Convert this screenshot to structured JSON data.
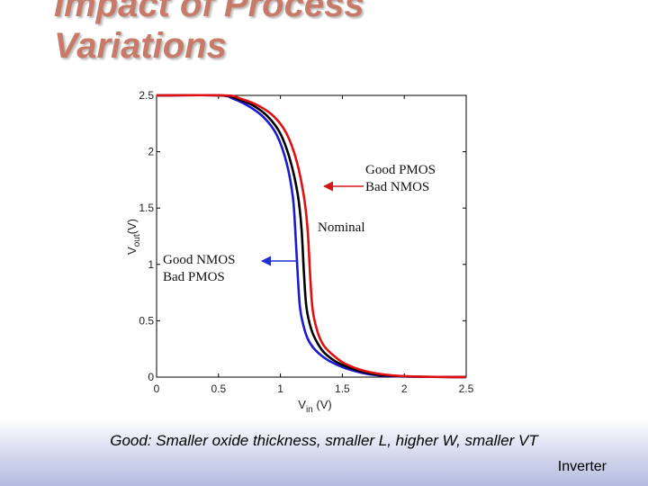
{
  "slide": {
    "title_line1": "Impact of Process",
    "title_line2": "Variations",
    "caption": "Good: Smaller oxide thickness, smaller L, higher W, smaller VT",
    "footer_label": "Inverter"
  },
  "chart_data": {
    "type": "line",
    "title": "",
    "xlabel_main": "V",
    "xlabel_sub": "in",
    "xlabel_unit": " (V)",
    "ylabel_main": "V",
    "ylabel_sub": "out",
    "ylabel_unit": "(V)",
    "xlim": [
      0,
      2.5
    ],
    "ylim": [
      0,
      2.5
    ],
    "grid": false,
    "x_ticks": [
      "0",
      "0.5",
      "1",
      "1.5",
      "2",
      "2.5"
    ],
    "y_ticks": [
      "0",
      "0.5",
      "1",
      "1.5",
      "2",
      "2.5"
    ],
    "series": [
      {
        "color": "#1a1ad0",
        "x": [
          0,
          0.5,
          0.62,
          0.75,
          0.87,
          0.97,
          1.05,
          1.1,
          1.12,
          1.14,
          1.16,
          1.2,
          1.24,
          1.3,
          1.4,
          1.55,
          1.75,
          2.0,
          2.5
        ],
        "y": [
          2.5,
          2.5,
          2.47,
          2.4,
          2.3,
          2.15,
          1.9,
          1.6,
          1.3,
          0.9,
          0.6,
          0.4,
          0.3,
          0.22,
          0.14,
          0.07,
          0.02,
          0.005,
          0.0
        ]
      },
      {
        "color": "#000000",
        "x": [
          0,
          0.52,
          0.65,
          0.78,
          0.9,
          1.0,
          1.08,
          1.14,
          1.17,
          1.19,
          1.21,
          1.25,
          1.3,
          1.36,
          1.46,
          1.62,
          1.8,
          2.05,
          2.5
        ],
        "y": [
          2.5,
          2.5,
          2.47,
          2.41,
          2.31,
          2.16,
          1.92,
          1.62,
          1.32,
          0.92,
          0.62,
          0.42,
          0.3,
          0.21,
          0.13,
          0.06,
          0.02,
          0.005,
          0.0
        ]
      },
      {
        "color": "#e01010",
        "x": [
          0,
          0.55,
          0.68,
          0.82,
          0.95,
          1.05,
          1.13,
          1.19,
          1.22,
          1.24,
          1.26,
          1.3,
          1.35,
          1.42,
          1.52,
          1.68,
          1.86,
          2.1,
          2.5
        ],
        "y": [
          2.5,
          2.5,
          2.47,
          2.41,
          2.31,
          2.16,
          1.92,
          1.6,
          1.3,
          0.9,
          0.6,
          0.4,
          0.28,
          0.2,
          0.12,
          0.055,
          0.02,
          0.005,
          0.0
        ]
      }
    ],
    "annotations": [
      {
        "line1": "Good PMOS",
        "line2": "Bad NMOS"
      },
      {
        "line1": "Nominal",
        "line2": ""
      },
      {
        "line1": "Good NMOS",
        "line2": "Bad PMOS"
      }
    ]
  }
}
